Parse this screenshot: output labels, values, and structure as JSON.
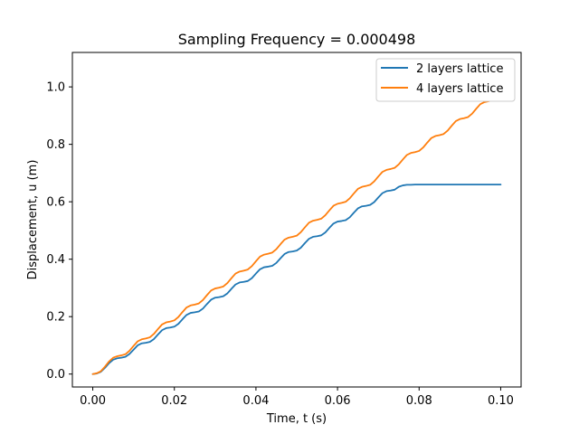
{
  "chart_data": {
    "type": "line",
    "title": "Sampling Frequency = 0.000498",
    "xlabel": "Time, t (s)",
    "ylabel": "Displacement, u (m)",
    "xlim": [
      -0.005,
      0.105
    ],
    "ylim": [
      -0.045,
      1.12
    ],
    "x_ticks": [
      0.0,
      0.02,
      0.04,
      0.06,
      0.08,
      0.1
    ],
    "x_tick_labels": [
      "0.00",
      "0.02",
      "0.04",
      "0.06",
      "0.08",
      "0.10"
    ],
    "y_ticks": [
      0.0,
      0.2,
      0.4,
      0.6,
      0.8,
      1.0
    ],
    "y_tick_labels": [
      "0.0",
      "0.2",
      "0.4",
      "0.6",
      "0.8",
      "1.0"
    ],
    "grid": false,
    "legend_position": "top-right",
    "series": [
      {
        "name": "2 layers lattice",
        "color": "#1f77b4",
        "x": [
          0.0,
          0.001,
          0.002,
          0.003,
          0.004,
          0.005,
          0.006,
          0.007,
          0.008,
          0.009,
          0.01,
          0.011,
          0.012,
          0.013,
          0.014,
          0.015,
          0.016,
          0.017,
          0.018,
          0.019,
          0.02,
          0.021,
          0.022,
          0.023,
          0.024,
          0.025,
          0.026,
          0.027,
          0.028,
          0.029,
          0.03,
          0.031,
          0.032,
          0.033,
          0.034,
          0.035,
          0.036,
          0.037,
          0.038,
          0.039,
          0.04,
          0.041,
          0.042,
          0.043,
          0.044,
          0.045,
          0.046,
          0.047,
          0.048,
          0.049,
          0.05,
          0.051,
          0.052,
          0.053,
          0.054,
          0.055,
          0.056,
          0.057,
          0.058,
          0.059,
          0.06,
          0.061,
          0.062,
          0.063,
          0.064,
          0.065,
          0.066,
          0.067,
          0.068,
          0.069,
          0.07,
          0.071,
          0.072,
          0.073,
          0.074,
          0.075,
          0.076,
          0.077,
          0.078,
          0.079,
          0.08,
          0.081,
          0.082,
          0.083,
          0.084,
          0.085,
          0.086,
          0.087,
          0.088,
          0.089,
          0.09,
          0.091,
          0.092,
          0.093,
          0.094,
          0.095,
          0.096,
          0.097,
          0.098,
          0.099,
          0.1
        ],
        "y": [
          0.0,
          0.002,
          0.008,
          0.022,
          0.038,
          0.05,
          0.055,
          0.057,
          0.06,
          0.07,
          0.085,
          0.1,
          0.107,
          0.109,
          0.112,
          0.122,
          0.138,
          0.153,
          0.16,
          0.162,
          0.165,
          0.175,
          0.191,
          0.206,
          0.213,
          0.215,
          0.218,
          0.228,
          0.244,
          0.259,
          0.266,
          0.268,
          0.271,
          0.281,
          0.297,
          0.312,
          0.319,
          0.321,
          0.324,
          0.334,
          0.35,
          0.365,
          0.372,
          0.374,
          0.377,
          0.387,
          0.403,
          0.418,
          0.425,
          0.427,
          0.43,
          0.44,
          0.456,
          0.471,
          0.478,
          0.48,
          0.483,
          0.493,
          0.509,
          0.524,
          0.531,
          0.533,
          0.536,
          0.546,
          0.562,
          0.577,
          0.584,
          0.586,
          0.589,
          0.599,
          0.615,
          0.63,
          0.637,
          0.639,
          0.642,
          0.652,
          0.657,
          0.659,
          0.659,
          0.66,
          0.66,
          0.66,
          0.66,
          0.66,
          0.66,
          0.66,
          0.66,
          0.66,
          0.66,
          0.66,
          0.66,
          0.66,
          0.66,
          0.66,
          0.66,
          0.66,
          0.66,
          0.66,
          0.66,
          0.66,
          0.66
        ]
      },
      {
        "name": "4 layers lattice",
        "color": "#ff7f0e",
        "x": [
          0.0,
          0.001,
          0.002,
          0.003,
          0.004,
          0.005,
          0.006,
          0.007,
          0.008,
          0.009,
          0.01,
          0.011,
          0.012,
          0.013,
          0.014,
          0.015,
          0.016,
          0.017,
          0.018,
          0.019,
          0.02,
          0.021,
          0.022,
          0.023,
          0.024,
          0.025,
          0.026,
          0.027,
          0.028,
          0.029,
          0.03,
          0.031,
          0.032,
          0.033,
          0.034,
          0.035,
          0.036,
          0.037,
          0.038,
          0.039,
          0.04,
          0.041,
          0.042,
          0.043,
          0.044,
          0.045,
          0.046,
          0.047,
          0.048,
          0.049,
          0.05,
          0.051,
          0.052,
          0.053,
          0.054,
          0.055,
          0.056,
          0.057,
          0.058,
          0.059,
          0.06,
          0.061,
          0.062,
          0.063,
          0.064,
          0.065,
          0.066,
          0.067,
          0.068,
          0.069,
          0.07,
          0.071,
          0.072,
          0.073,
          0.074,
          0.075,
          0.076,
          0.077,
          0.078,
          0.079,
          0.08,
          0.081,
          0.082,
          0.083,
          0.084,
          0.085,
          0.086,
          0.087,
          0.088,
          0.089,
          0.09,
          0.091,
          0.092,
          0.093,
          0.094,
          0.095,
          0.096,
          0.097,
          0.098,
          0.099,
          0.1
        ],
        "y": [
          0.0,
          0.003,
          0.01,
          0.026,
          0.044,
          0.057,
          0.062,
          0.065,
          0.069,
          0.081,
          0.098,
          0.114,
          0.121,
          0.124,
          0.128,
          0.14,
          0.157,
          0.173,
          0.18,
          0.183,
          0.187,
          0.199,
          0.216,
          0.232,
          0.239,
          0.242,
          0.246,
          0.258,
          0.275,
          0.291,
          0.298,
          0.301,
          0.305,
          0.317,
          0.334,
          0.35,
          0.357,
          0.36,
          0.364,
          0.376,
          0.393,
          0.409,
          0.416,
          0.419,
          0.423,
          0.435,
          0.452,
          0.468,
          0.475,
          0.478,
          0.482,
          0.494,
          0.511,
          0.527,
          0.534,
          0.537,
          0.541,
          0.553,
          0.57,
          0.586,
          0.593,
          0.596,
          0.6,
          0.612,
          0.629,
          0.645,
          0.652,
          0.655,
          0.659,
          0.671,
          0.688,
          0.704,
          0.711,
          0.714,
          0.718,
          0.73,
          0.747,
          0.763,
          0.77,
          0.773,
          0.777,
          0.789,
          0.806,
          0.822,
          0.829,
          0.832,
          0.836,
          0.848,
          0.865,
          0.881,
          0.888,
          0.891,
          0.895,
          0.907,
          0.924,
          0.94,
          0.947,
          0.95,
          0.954,
          0.966,
          0.983
        ]
      }
    ]
  }
}
